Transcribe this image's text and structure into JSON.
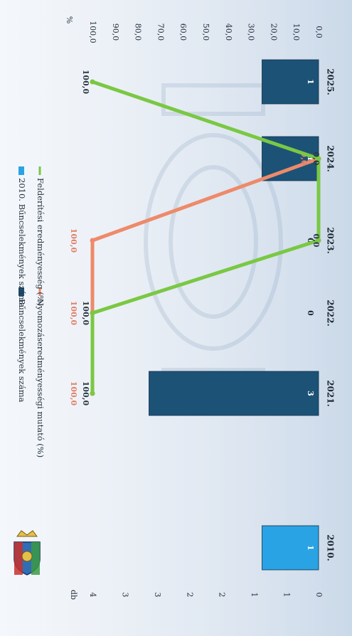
{
  "chart_data": {
    "type": "bar",
    "orientation": "rotated-90-cw",
    "left_axis_label": "db",
    "right_axis_label": "%",
    "left_ticks": [
      "0",
      "1",
      "1",
      "2",
      "2",
      "3",
      "3",
      "4"
    ],
    "right_ticks": [
      "0,0",
      "10,0",
      "20,0",
      "30,0",
      "40,0",
      "50,0",
      "60,0",
      "70,0",
      "80,0",
      "90,0",
      "100,0"
    ],
    "ylim_count": [
      0,
      4
    ],
    "ylim_percent": [
      0,
      100
    ],
    "categories": [
      "2010.",
      "2021.",
      "2022.",
      "2023.",
      "2024.",
      "2025."
    ],
    "legend": [
      {
        "label": "Bűncselekmények száma",
        "color": "#1d5277"
      },
      {
        "label": "2010. Bűncselekmények száma",
        "color": "#29a3e3"
      },
      {
        "label": "Nyomozáseredményességi mutató (%)",
        "color": "#ee8a6a"
      },
      {
        "label": "Felderítési eredményesség (%)",
        "color": "#7ac843"
      }
    ],
    "series": [
      {
        "name": "Bűncselekmények száma",
        "kind": "bar",
        "color": "#1d5277",
        "values": [
          null,
          3,
          0,
          0,
          1,
          1
        ],
        "labels": [
          "",
          "3",
          "0",
          "0",
          "1",
          "1"
        ]
      },
      {
        "name": "2010. Bűncselekmények száma",
        "kind": "bar",
        "color": "#29a3e3",
        "values": [
          1,
          null,
          null,
          null,
          null,
          null
        ],
        "labels": [
          "1",
          "",
          "",
          "",
          "",
          ""
        ]
      },
      {
        "name": "Nyomozáseredményességi mutató (%)",
        "kind": "line",
        "color": "#ee8a6a",
        "values": [
          null,
          100,
          100,
          100,
          0,
          null
        ],
        "labels": [
          "",
          "100,0",
          "100,0",
          "100,0",
          "0,0",
          ""
        ]
      },
      {
        "name": "Felderítési eredményesség (%)",
        "kind": "line",
        "color": "#7ac843",
        "values": [
          null,
          100,
          100,
          0,
          0,
          100
        ],
        "labels": [
          "",
          "100,0",
          "100,0",
          "0,0",
          "0,0",
          "100,0"
        ]
      }
    ],
    "grid": false,
    "legend_position": "top"
  }
}
